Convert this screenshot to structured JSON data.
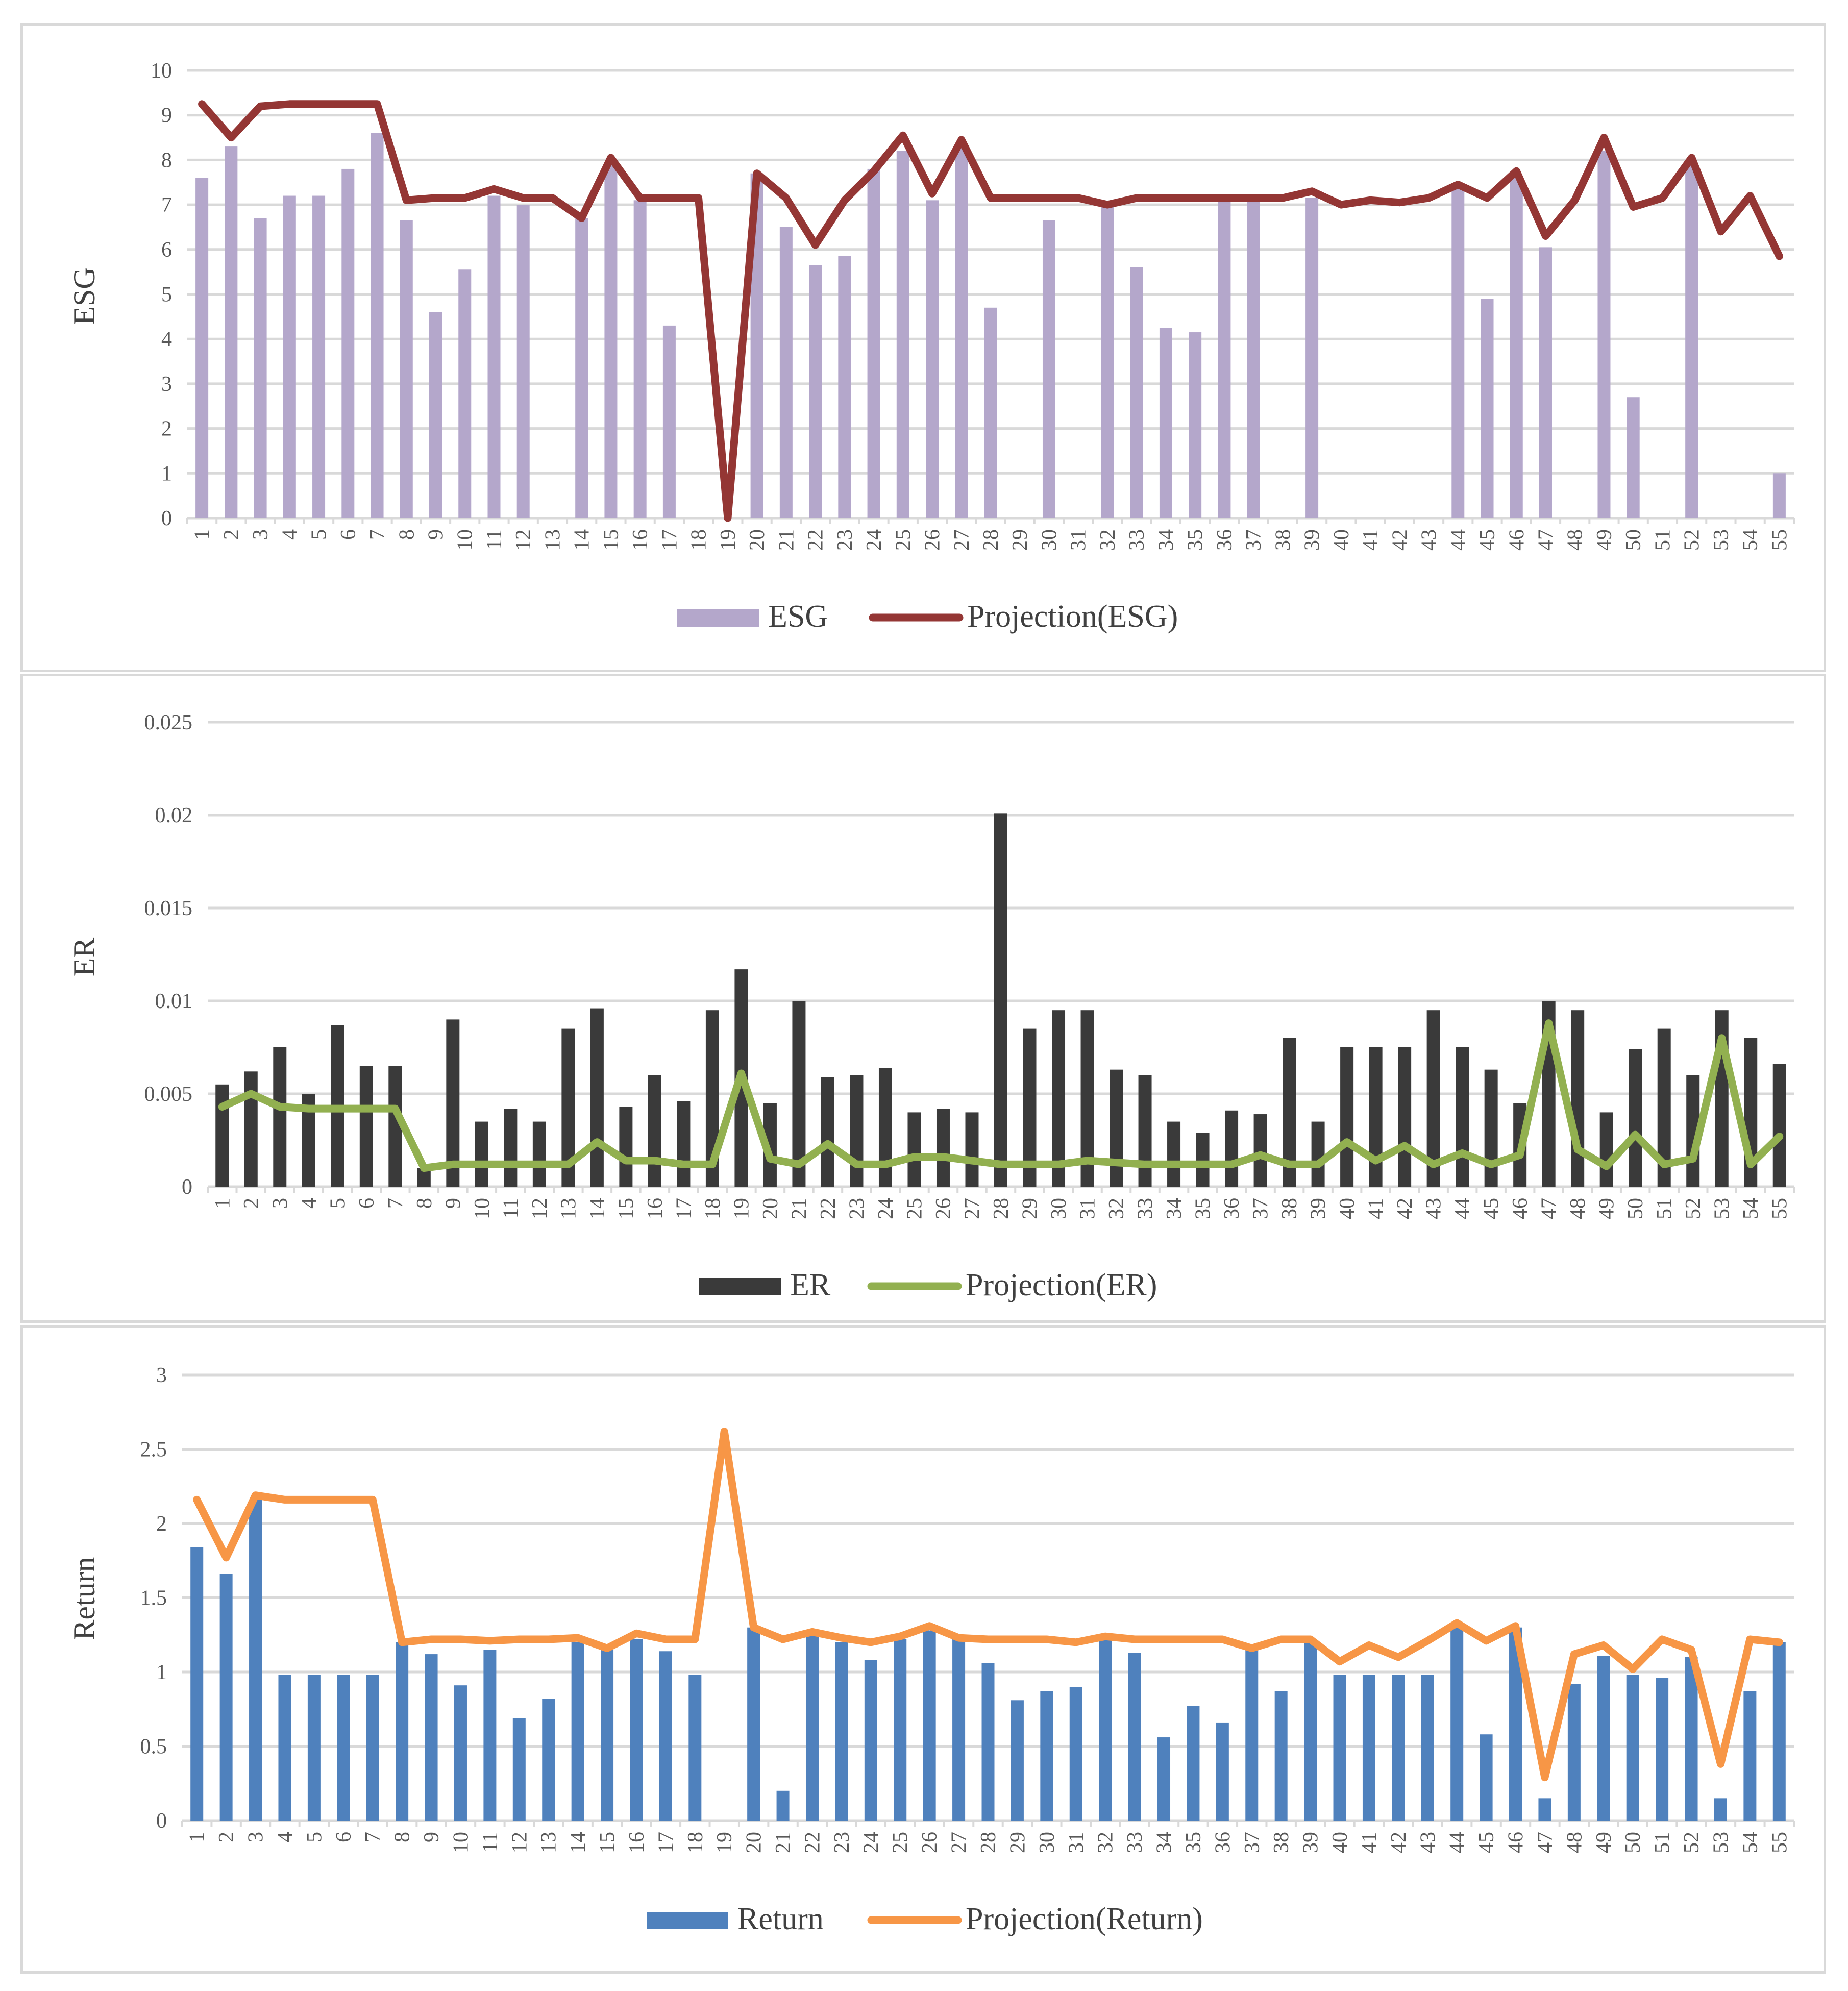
{
  "colors": {
    "esg_bar": "#b4a7cb",
    "esg_line": "#943634",
    "er_bar": "#3a3a3a",
    "er_line": "#92b050",
    "ret_bar": "#4f81bd",
    "ret_line": "#f79646",
    "grid": "#d9d9d9",
    "text": "#595959"
  },
  "chart_data": [
    {
      "type": "bar",
      "id": "esg",
      "ylabel": "ESG",
      "ylim": [
        0,
        10
      ],
      "yticks": [
        "0",
        "1",
        "2",
        "3",
        "4",
        "5",
        "6",
        "7",
        "8",
        "9",
        "10"
      ],
      "ytick_values": [
        0,
        1,
        2,
        3,
        4,
        5,
        6,
        7,
        8,
        9,
        10
      ],
      "categories": [
        "1",
        "2",
        "3",
        "4",
        "5",
        "6",
        "7",
        "8",
        "9",
        "10",
        "11",
        "12",
        "13",
        "14",
        "15",
        "16",
        "17",
        "18",
        "19",
        "20",
        "21",
        "22",
        "23",
        "24",
        "25",
        "26",
        "27",
        "28",
        "29",
        "30",
        "31",
        "32",
        "33",
        "34",
        "35",
        "36",
        "37",
        "38",
        "39",
        "40",
        "41",
        "42",
        "43",
        "44",
        "45",
        "46",
        "47",
        "48",
        "49",
        "50",
        "51",
        "52",
        "53",
        "54",
        "55"
      ],
      "series": [
        {
          "name": "ESG",
          "kind": "bar",
          "values": [
            7.6,
            8.3,
            6.7,
            7.2,
            7.2,
            7.8,
            8.6,
            6.65,
            4.6,
            5.55,
            7.2,
            7.0,
            0,
            6.7,
            7.9,
            7.1,
            4.3,
            0,
            0,
            7.7,
            6.5,
            5.65,
            5.85,
            7.8,
            8.2,
            7.1,
            8.3,
            4.7,
            0,
            6.65,
            0,
            7.0,
            5.6,
            4.25,
            4.15,
            7.15,
            7.1,
            0,
            7.15,
            0,
            0,
            0,
            0,
            7.45,
            4.9,
            7.6,
            6.05,
            0,
            8.2,
            2.7,
            0,
            7.9,
            0,
            0,
            1.0
          ]
        },
        {
          "name": "Projection(ESG)",
          "kind": "line",
          "values": [
            9.25,
            8.5,
            9.2,
            9.25,
            9.25,
            9.25,
            9.25,
            7.1,
            7.15,
            7.15,
            7.35,
            7.15,
            7.15,
            6.7,
            8.05,
            7.15,
            7.15,
            7.15,
            0,
            7.7,
            7.15,
            6.1,
            7.1,
            7.75,
            8.55,
            7.25,
            8.45,
            7.15,
            7.15,
            7.15,
            7.15,
            7.0,
            7.15,
            7.15,
            7.15,
            7.15,
            7.15,
            7.15,
            7.3,
            7.0,
            7.1,
            7.05,
            7.15,
            7.45,
            7.15,
            7.75,
            6.3,
            7.1,
            8.5,
            6.95,
            7.15,
            8.05,
            6.4,
            7.2,
            5.85
          ]
        }
      ],
      "legend": {
        "position": "bottom",
        "entries": [
          "ESG",
          "Projection(ESG)"
        ]
      }
    },
    {
      "type": "bar",
      "id": "er",
      "ylabel": "ER",
      "ylim": [
        0,
        0.025
      ],
      "yticks": [
        "0",
        "0.005",
        "0.01",
        "0.015",
        "0.02",
        "0.025"
      ],
      "ytick_values": [
        0,
        0.005,
        0.01,
        0.015,
        0.02,
        0.025
      ],
      "categories": [
        "1",
        "2",
        "3",
        "4",
        "5",
        "6",
        "7",
        "8",
        "9",
        "10",
        "11",
        "12",
        "13",
        "14",
        "15",
        "16",
        "17",
        "18",
        "19",
        "20",
        "21",
        "22",
        "23",
        "24",
        "25",
        "26",
        "27",
        "28",
        "29",
        "30",
        "31",
        "32",
        "33",
        "34",
        "35",
        "36",
        "37",
        "38",
        "39",
        "40",
        "41",
        "42",
        "43",
        "44",
        "45",
        "46",
        "47",
        "48",
        "49",
        "50",
        "51",
        "52",
        "53",
        "54",
        "55"
      ],
      "series": [
        {
          "name": "ER",
          "kind": "bar",
          "values": [
            0.0055,
            0.0062,
            0.0075,
            0.005,
            0.0087,
            0.0065,
            0.0065,
            0.001,
            0.009,
            0.0035,
            0.0042,
            0.0035,
            0.0085,
            0.0096,
            0.0043,
            0.006,
            0.0046,
            0.0095,
            0.0117,
            0.0045,
            0.01,
            0.0059,
            0.006,
            0.0064,
            0.004,
            0.0042,
            0.004,
            0.0201,
            0.0085,
            0.0095,
            0.0095,
            0.0063,
            0.006,
            0.0035,
            0.0029,
            0.0041,
            0.0039,
            0.008,
            0.0035,
            0.0075,
            0.0075,
            0.0075,
            0.0095,
            0.0075,
            0.0063,
            0.0045,
            0.01,
            0.0095,
            0.004,
            0.0074,
            0.0085,
            0.006,
            0.0095,
            0.008,
            0.0066
          ]
        },
        {
          "name": "Projection(ER)",
          "kind": "line",
          "values": [
            0.0043,
            0.005,
            0.0043,
            0.0042,
            0.0042,
            0.0042,
            0.0042,
            0.001,
            0.0012,
            0.0012,
            0.0012,
            0.0012,
            0.0012,
            0.0024,
            0.0014,
            0.0014,
            0.0012,
            0.0012,
            0.0061,
            0.0015,
            0.0012,
            0.0023,
            0.0012,
            0.0012,
            0.0016,
            0.0016,
            0.0014,
            0.0012,
            0.0012,
            0.0012,
            0.0014,
            0.0013,
            0.0012,
            0.0012,
            0.0012,
            0.0012,
            0.0017,
            0.0012,
            0.0012,
            0.0024,
            0.0014,
            0.0022,
            0.0012,
            0.0018,
            0.0012,
            0.0017,
            0.0088,
            0.002,
            0.0011,
            0.0028,
            0.0012,
            0.0015,
            0.008,
            0.0012,
            0.0027
          ]
        }
      ],
      "legend": {
        "position": "bottom",
        "entries": [
          "ER",
          "Projection(ER)"
        ]
      }
    },
    {
      "type": "bar",
      "id": "ret",
      "ylabel": "Return",
      "ylim": [
        0,
        3
      ],
      "yticks": [
        "0",
        "0.5",
        "1",
        "1.5",
        "2",
        "2.5",
        "3"
      ],
      "ytick_values": [
        0,
        0.5,
        1,
        1.5,
        2,
        2.5,
        3
      ],
      "categories": [
        "1",
        "2",
        "3",
        "4",
        "5",
        "6",
        "7",
        "8",
        "9",
        "10",
        "11",
        "12",
        "13",
        "14",
        "15",
        "16",
        "17",
        "18",
        "19",
        "20",
        "21",
        "22",
        "23",
        "24",
        "25",
        "26",
        "27",
        "28",
        "29",
        "30",
        "31",
        "32",
        "33",
        "34",
        "35",
        "36",
        "37",
        "38",
        "39",
        "40",
        "41",
        "42",
        "43",
        "44",
        "45",
        "46",
        "47",
        "48",
        "49",
        "50",
        "51",
        "52",
        "53",
        "54",
        "55"
      ],
      "series": [
        {
          "name": "Return",
          "kind": "bar",
          "values": [
            1.84,
            1.66,
            2.16,
            0.98,
            0.98,
            0.98,
            0.98,
            1.2,
            1.12,
            0.91,
            1.15,
            0.69,
            0.82,
            1.2,
            1.15,
            1.22,
            1.14,
            0.98,
            0,
            1.3,
            0.2,
            1.25,
            1.2,
            1.08,
            1.22,
            1.28,
            1.22,
            1.06,
            0.81,
            0.87,
            0.9,
            1.22,
            1.13,
            0.56,
            0.77,
            0.66,
            1.17,
            0.87,
            1.2,
            0.98,
            0.98,
            0.98,
            0.98,
            1.3,
            0.58,
            1.3,
            0.15,
            0.92,
            1.11,
            0.98,
            0.96,
            1.1,
            0.15,
            0.87,
            1.2
          ]
        },
        {
          "name": "Projection(Return)",
          "kind": "line",
          "values": [
            2.16,
            1.77,
            2.19,
            2.16,
            2.16,
            2.16,
            2.16,
            1.2,
            1.22,
            1.22,
            1.21,
            1.22,
            1.22,
            1.23,
            1.16,
            1.26,
            1.22,
            1.22,
            2.62,
            1.3,
            1.22,
            1.27,
            1.23,
            1.2,
            1.24,
            1.31,
            1.23,
            1.22,
            1.22,
            1.22,
            1.2,
            1.24,
            1.22,
            1.22,
            1.22,
            1.22,
            1.16,
            1.22,
            1.22,
            1.07,
            1.18,
            1.1,
            1.21,
            1.33,
            1.21,
            1.31,
            0.29,
            1.12,
            1.18,
            1.02,
            1.22,
            1.15,
            0.38,
            1.22,
            1.2
          ]
        }
      ],
      "legend": {
        "position": "bottom",
        "entries": [
          "Return",
          "Projection(Return)"
        ]
      }
    }
  ]
}
